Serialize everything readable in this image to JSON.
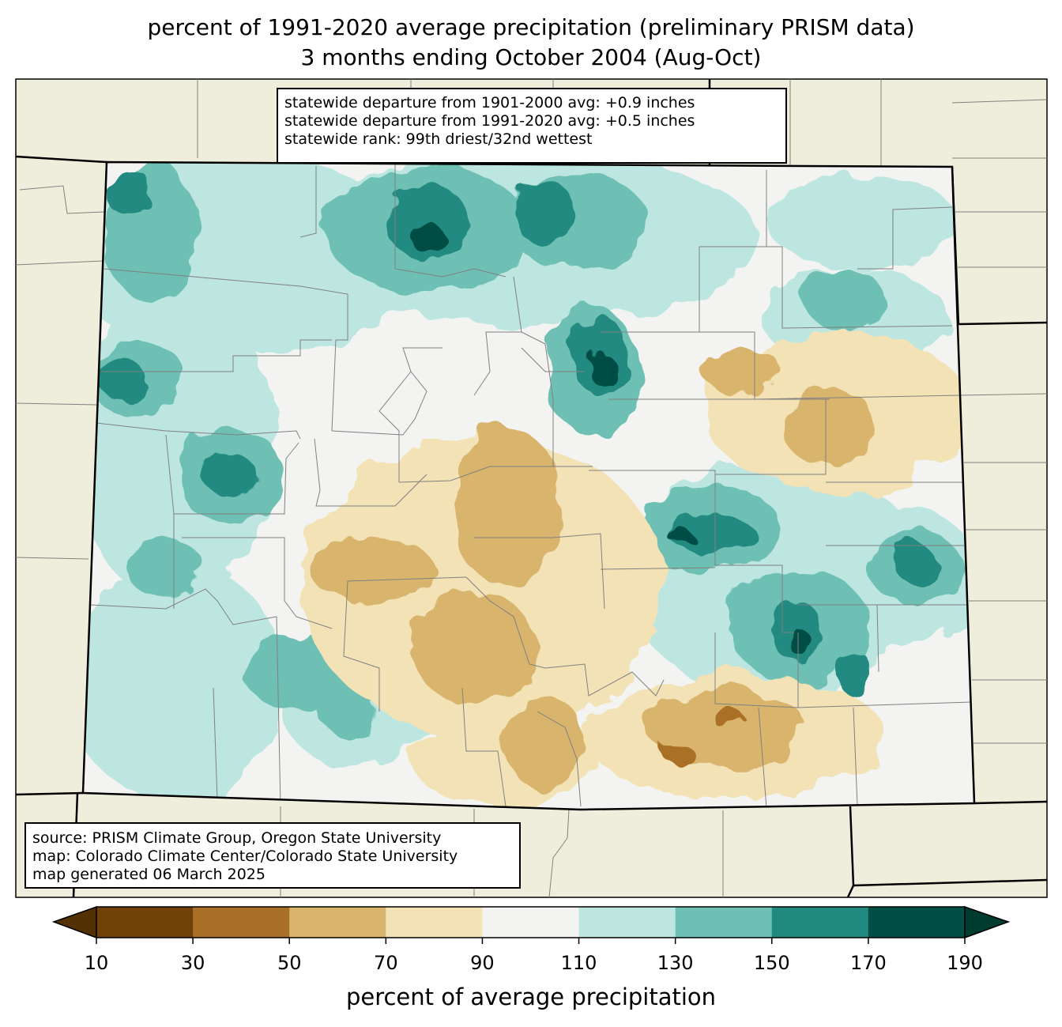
{
  "title": {
    "line1": "percent of 1991-2020 average precipitation (preliminary PRISM data)",
    "line2": "3 months ending October 2004 (Aug-Oct)"
  },
  "stats": {
    "line1": "statewide departure from 1901-2000 avg: +0.9 inches",
    "line2": "statewide departure from 1991-2020 avg: +0.5 inches",
    "line3": "statewide rank: 99th driest/32nd wettest"
  },
  "source": {
    "line1": "source: PRISM Climate Group, Oregon State University",
    "line2": "map: Colorado Climate Center/Colorado State University",
    "line3": "map generated 06 March 2025"
  },
  "colorbar": {
    "label": "percent of average precipitation",
    "ticks": [
      "10",
      "30",
      "50",
      "70",
      "90",
      "110",
      "130",
      "150",
      "170",
      "190"
    ],
    "colors": [
      "#704208",
      "#a96f26",
      "#d9b46c",
      "#f2e2b6",
      "#f3f4f2",
      "#bde6e1",
      "#6ec0b4",
      "#218a80",
      "#004e44"
    ],
    "under_color": "#543005",
    "over_color": "#003c30"
  },
  "colors": {
    "background_land": "#efeedc",
    "state_border": "#000000",
    "county_border": "#808080"
  }
}
